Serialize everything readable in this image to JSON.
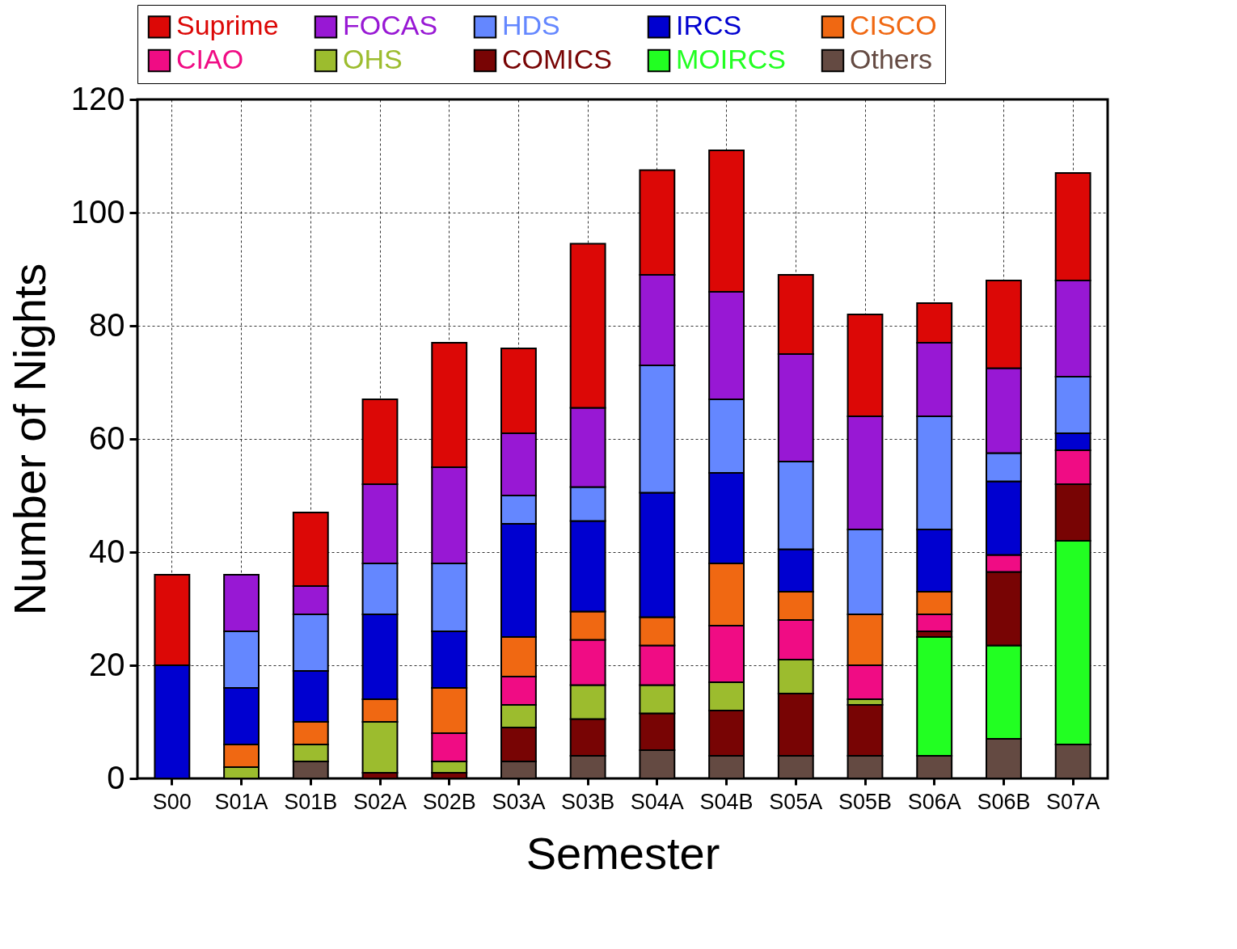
{
  "chart_data": {
    "type": "bar",
    "stacked": true,
    "xlabel": "Semester",
    "ylabel": "Number of Nights",
    "categories": [
      "S00",
      "S01A",
      "S01B",
      "S02A",
      "S02B",
      "S03A",
      "S03B",
      "S04A",
      "S04B",
      "S05A",
      "S05B",
      "S06A",
      "S06B",
      "S07A"
    ],
    "ylim": [
      0,
      120
    ],
    "yticks": [
      0,
      20,
      40,
      60,
      80,
      100,
      120
    ],
    "grid": true,
    "legend": "top",
    "series": [
      {
        "name": "Others",
        "color": "#644a42",
        "values": [
          0,
          0,
          3,
          0,
          0,
          3,
          4,
          5,
          4,
          4,
          4,
          4,
          7,
          6
        ]
      },
      {
        "name": "MOIRCS",
        "color": "#22ff22",
        "values": [
          0,
          0,
          0,
          0,
          0,
          0,
          0,
          0,
          0,
          0,
          0,
          21,
          16.5,
          36
        ]
      },
      {
        "name": "COMICS",
        "color": "#780404",
        "values": [
          0,
          0,
          0,
          1,
          1,
          6,
          6.5,
          6.5,
          8,
          11,
          9,
          1,
          13,
          10
        ]
      },
      {
        "name": "OHS",
        "color": "#9cbc2e",
        "values": [
          0,
          2,
          3,
          9,
          2,
          4,
          6,
          5,
          5,
          6,
          1,
          0,
          0,
          0
        ]
      },
      {
        "name": "CIAO",
        "color": "#f00c84",
        "values": [
          0,
          0,
          0,
          0,
          5,
          5,
          8,
          7,
          10,
          7,
          6,
          3,
          3,
          6
        ]
      },
      {
        "name": "CISCO",
        "color": "#f06812",
        "values": [
          0,
          4,
          4,
          4,
          8,
          7,
          5,
          5,
          11,
          5,
          9,
          4,
          0,
          0
        ]
      },
      {
        "name": "IRCS",
        "color": "#0000d0",
        "values": [
          20,
          10,
          9,
          15,
          10,
          20,
          16,
          22,
          16,
          7.5,
          0,
          11,
          13,
          3
        ]
      },
      {
        "name": "HDS",
        "color": "#6487ff",
        "values": [
          0,
          10,
          10,
          9,
          12,
          5,
          6,
          22.5,
          13,
          15.5,
          15,
          20,
          5,
          10
        ]
      },
      {
        "name": "FOCAS",
        "color": "#9818d4",
        "values": [
          0,
          10,
          5,
          14,
          17,
          11,
          14,
          16,
          19,
          19,
          20,
          13,
          15,
          17
        ]
      },
      {
        "name": "Suprime",
        "color": "#dc0806",
        "values": [
          16,
          0,
          13,
          15,
          22,
          15,
          29,
          18.5,
          25,
          14,
          18,
          7,
          15.5,
          19
        ]
      }
    ]
  }
}
